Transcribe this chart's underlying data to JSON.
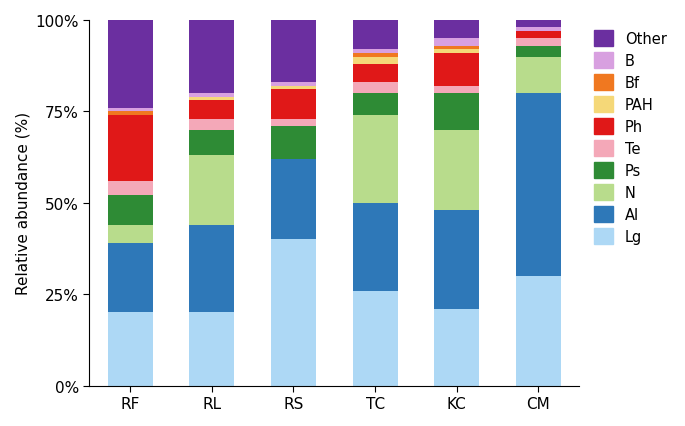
{
  "categories": [
    "RF",
    "RL",
    "RS",
    "TC",
    "KC",
    "CM"
  ],
  "stack_order": [
    "Lg",
    "Al",
    "N",
    "Ps",
    "Te",
    "Ph",
    "PAH",
    "Bf",
    "B",
    "Other"
  ],
  "series": {
    "Lg": [
      20,
      20,
      40,
      26,
      21,
      30
    ],
    "Al": [
      19,
      24,
      22,
      24,
      27,
      50
    ],
    "N": [
      5,
      19,
      0,
      24,
      22,
      10
    ],
    "Ps": [
      8,
      7,
      9,
      6,
      10,
      3
    ],
    "Te": [
      4,
      3,
      2,
      3,
      2,
      2
    ],
    "Ph": [
      18,
      5,
      8,
      5,
      9,
      2
    ],
    "PAH": [
      0,
      1,
      1,
      2,
      1,
      0
    ],
    "Bf": [
      1,
      0,
      0,
      1,
      1,
      0
    ],
    "B": [
      1,
      1,
      1,
      1,
      2,
      1
    ],
    "Other": [
      24,
      20,
      17,
      8,
      5,
      2
    ]
  },
  "colors": {
    "Lg": "#add8f5",
    "Al": "#2e78b8",
    "N": "#b8dc8c",
    "Ps": "#2e8b35",
    "Te": "#f4a8b8",
    "Ph": "#e01818",
    "PAH": "#f5d878",
    "Bf": "#f07820",
    "B": "#d8a0e0",
    "Other": "#6b2fa0"
  },
  "ylabel": "Relative abundance (%)",
  "yticks": [
    0,
    25,
    50,
    75,
    100
  ],
  "yticklabels": [
    "0%",
    "25%",
    "50%",
    "75%",
    "100%"
  ],
  "legend_order": [
    "Other",
    "B",
    "Bf",
    "PAH",
    "Ph",
    "Te",
    "Ps",
    "N",
    "Al",
    "Lg"
  ],
  "figsize": [
    6.85,
    4.27
  ],
  "dpi": 100
}
